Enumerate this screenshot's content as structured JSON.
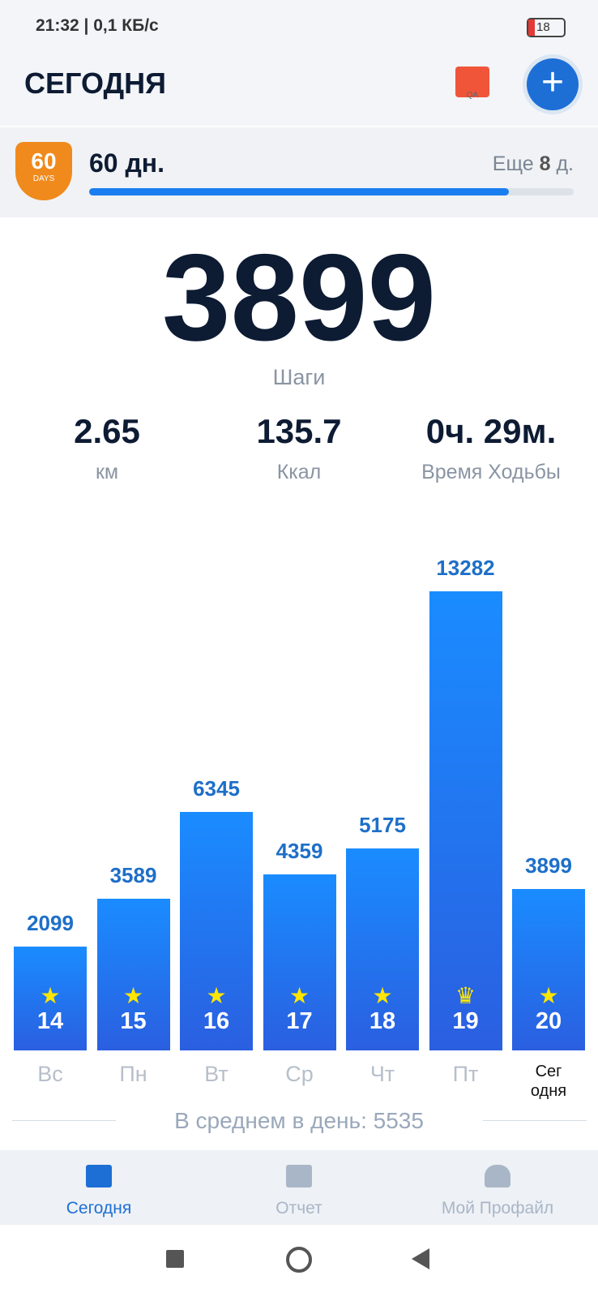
{
  "status_bar": {
    "time": "21:32 | 0,1 КБ/с",
    "battery": "18"
  },
  "header": {
    "title": "СЕГОДНЯ",
    "gift_badge": "QA"
  },
  "streak": {
    "badge_number": 60,
    "badge_text": "DAYS",
    "title": "60 дн.",
    "remaining_prefix": "Еще",
    "remaining": 8,
    "remaining_suffix": "д."
  },
  "summary": {
    "steps": 3899,
    "steps_label": "Шаги",
    "metrics": [
      {
        "value": "2.65",
        "label": "км"
      },
      {
        "value": "135.7",
        "label": "Ккал"
      },
      {
        "value": "0ч. 29м.",
        "label": "Время Ходьбы"
      }
    ]
  },
  "chart_data": {
    "type": "bar",
    "categories": [
      "Вс",
      "Пн",
      "Вт",
      "Ср",
      "Чт",
      "Пт",
      "Сег\nодня"
    ],
    "dates": [
      14,
      15,
      16,
      17,
      18,
      19,
      20
    ],
    "values": [
      2099,
      3589,
      6345,
      4359,
      5175,
      13282,
      3899
    ]
  },
  "average": {
    "label": "В среднем в день:",
    "value": 5535
  },
  "nav": [
    "Сегодня",
    "Отчет",
    "Мой Профайл"
  ]
}
